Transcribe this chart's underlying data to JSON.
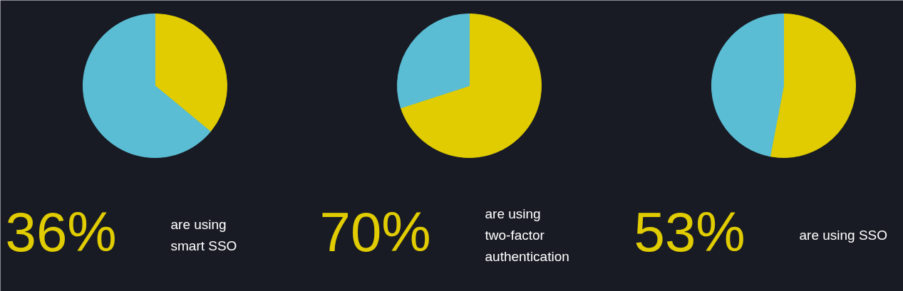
{
  "chart_data": [
    {
      "type": "pie",
      "categories": [
        null,
        null
      ],
      "values": [
        36,
        64
      ],
      "colors": [
        "#e0cc00",
        "#5bbdd4"
      ],
      "annotations": [
        "36%",
        "are using\nsmart SSO"
      ]
    },
    {
      "type": "pie",
      "categories": [
        null,
        null
      ],
      "values": [
        70,
        30
      ],
      "colors": [
        "#e0cc00",
        "#5bbdd4"
      ],
      "annotations": [
        "70%",
        "are using\ntwo-factor\nauthentication"
      ]
    },
    {
      "type": "pie",
      "categories": [
        null,
        null
      ],
      "values": [
        53,
        47
      ],
      "colors": [
        "#e0cc00",
        "#5bbdd4"
      ],
      "annotations": [
        "53%",
        "are using SSO"
      ]
    }
  ]
}
